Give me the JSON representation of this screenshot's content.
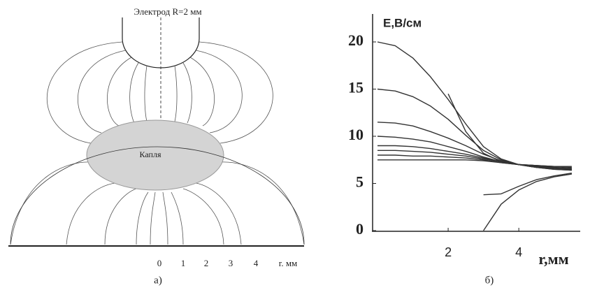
{
  "diagram": {
    "title": "Электрод R=2 мм",
    "drop_label": "Капля",
    "axis_ticks": [
      "0",
      "1",
      "2",
      "3",
      "4"
    ],
    "axis_label": "r. мм",
    "caption": "а)"
  },
  "chart_data": {
    "type": "line",
    "y_label": "E,В/см",
    "x_label": "r,мм",
    "caption": "б)",
    "x": [
      0,
      0.5,
      1,
      1.5,
      2,
      2.5,
      3,
      3.5,
      4,
      4.5,
      5,
      5.5
    ],
    "series": [
      {
        "color": "#333333",
        "values": [
          20,
          19.6,
          18.3,
          16.3,
          13.9,
          11.3,
          8.9,
          7.6,
          7.0,
          6.7,
          6.5,
          6.4
        ]
      },
      {
        "color": "#333333",
        "values": [
          15,
          14.8,
          14.2,
          13.2,
          11.8,
          10.1,
          8.5,
          7.5,
          7.0,
          6.7,
          6.5,
          6.4
        ]
      },
      {
        "color": "#333333",
        "values": [
          11.5,
          11.4,
          11.1,
          10.5,
          9.8,
          9.0,
          8.1,
          7.4,
          7.0,
          6.7,
          6.6,
          6.5
        ]
      },
      {
        "color": "#333333",
        "values": [
          10,
          9.9,
          9.7,
          9.4,
          8.9,
          8.4,
          7.8,
          7.3,
          7.0,
          6.8,
          6.6,
          6.5
        ]
      },
      {
        "color": "#333333",
        "values": [
          9,
          9,
          8.9,
          8.7,
          8.4,
          8.1,
          7.7,
          7.3,
          7.0,
          6.8,
          6.7,
          6.6
        ]
      },
      {
        "color": "#333333",
        "values": [
          8.5,
          8.5,
          8.4,
          8.3,
          8.1,
          7.9,
          7.6,
          7.3,
          7.0,
          6.9,
          6.7,
          6.6
        ]
      },
      {
        "color": "#333333",
        "values": [
          8,
          8,
          7.9,
          7.9,
          7.8,
          7.7,
          7.5,
          7.2,
          7.0,
          6.9,
          6.8,
          6.7
        ]
      },
      {
        "color": "#333333",
        "values": [
          7.5,
          7.5,
          7.5,
          7.5,
          7.5,
          7.5,
          7.4,
          7.2,
          7.0,
          6.9,
          6.8,
          6.8
        ]
      },
      {
        "color": "#333333",
        "values": [
          null,
          null,
          null,
          null,
          14.5,
          10.5,
          8.2,
          7.3,
          7.0,
          6.8,
          6.6,
          6.5
        ]
      },
      {
        "color": "#333333",
        "values": [
          null,
          null,
          null,
          null,
          null,
          null,
          0,
          2.8,
          4.3,
          5.2,
          5.7,
          6.0
        ]
      },
      {
        "color": "#333333",
        "values": [
          null,
          null,
          null,
          null,
          null,
          null,
          3.8,
          3.9,
          4.7,
          5.4,
          5.8,
          6.1
        ]
      }
    ],
    "xlim": [
      0,
      5.6
    ],
    "ylim": [
      0,
      20
    ],
    "xticks": [
      2,
      4
    ],
    "yticks": [
      0,
      5,
      10,
      15,
      20
    ]
  }
}
